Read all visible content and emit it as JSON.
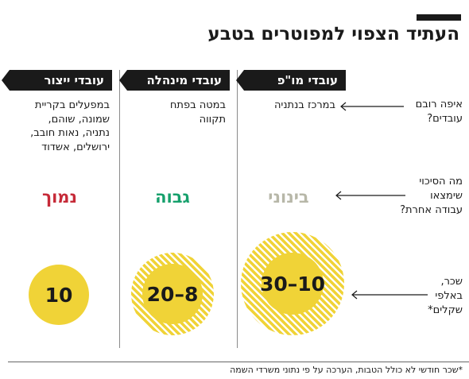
{
  "title": "העתיד הצפוי למפוטרים בטבע",
  "columns": [
    {
      "header": "עובדי מו\"פ",
      "place": [
        "במרכז בנתניה"
      ],
      "risk": "בינוני",
      "risk_color": "#b7b7a8",
      "salary": "30–10"
    },
    {
      "header": "עובדי מינהלה",
      "place": [
        "במטה בפתח",
        "תקווה"
      ],
      "risk": "גבוה",
      "risk_color": "#16a06c",
      "salary": "20–8"
    },
    {
      "header": "עובדי ייצור",
      "place": [
        "במפעלים בקריית",
        "שמונה, שוהם,",
        "נתניה, נאות חובב,",
        "ירושלים, אשדוד"
      ],
      "risk": "נמוך",
      "risk_color": "#c62a38",
      "salary": "10"
    }
  ],
  "questions": [
    [
      "איפה רובם",
      "עובדים?"
    ],
    [
      "מה הסיכוי",
      "שימצאו",
      "עבודה אחרת?"
    ],
    [
      "שכר,",
      "באלפי",
      "שקלים*"
    ]
  ],
  "footnote": "*שכר חודשי לא כולל הטבות, הערכה על פי נתוני משרדי השמה",
  "colors": {
    "accent_yellow": "#f0d337",
    "dark": "#1a1a1a"
  }
}
